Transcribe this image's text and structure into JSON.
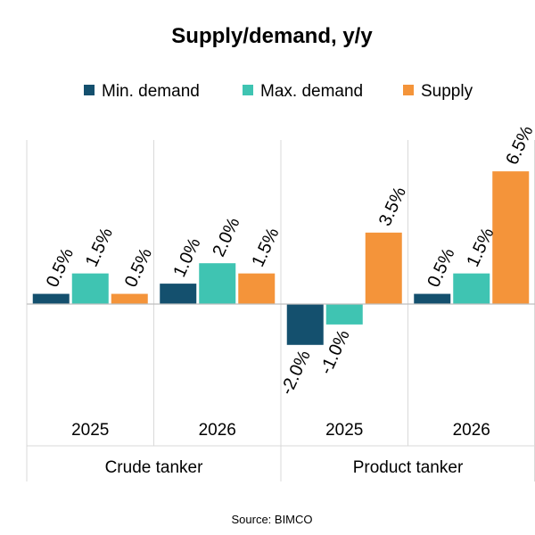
{
  "chart_data": {
    "type": "bar",
    "title": "Supply/demand, y/y",
    "source": "Source: BIMCO",
    "groups": [
      {
        "label": "Crude tanker",
        "categories": [
          "2025",
          "2026"
        ]
      },
      {
        "label": "Product tanker",
        "categories": [
          "2025",
          "2026"
        ]
      }
    ],
    "categories": [
      "2025",
      "2026",
      "2025",
      "2026"
    ],
    "series": [
      {
        "name": "Min. demand",
        "color": "#14506e",
        "values": [
          0.5,
          1.0,
          -2.0,
          0.5
        ],
        "labels": [
          "0.5%",
          "1.0%",
          "-2.0%",
          "0.5%"
        ]
      },
      {
        "name": "Max. demand",
        "color": "#3fc4b2",
        "values": [
          1.5,
          2.0,
          -1.0,
          1.5
        ],
        "labels": [
          "1.5%",
          "2.0%",
          "-1.0%",
          "1.5%"
        ]
      },
      {
        "name": "Supply",
        "color": "#f4943a",
        "values": [
          0.5,
          1.5,
          3.5,
          6.5
        ],
        "labels": [
          "0.5%",
          "1.5%",
          "3.5%",
          "6.5%"
        ]
      }
    ],
    "ylim": [
      -2.0,
      6.5
    ],
    "legend_position": "top",
    "grid": false
  }
}
